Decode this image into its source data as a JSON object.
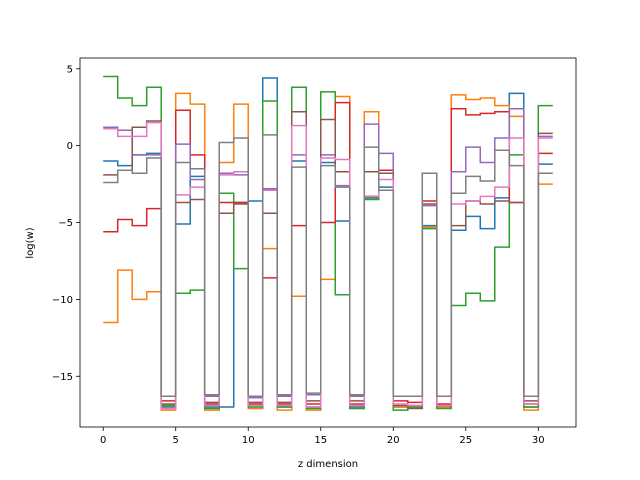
{
  "chart_data": {
    "type": "line",
    "drawstyle": "steps-post",
    "title": "",
    "xlabel": "z dimension",
    "ylabel": "log(w)",
    "xlim": [
      -1.6,
      32.6
    ],
    "ylim": [
      -18.3,
      5.7
    ],
    "xticks": [
      0,
      5,
      10,
      15,
      20,
      25,
      30
    ],
    "yticks": [
      -15,
      -10,
      -5,
      0,
      5
    ],
    "ytick_labels": [
      "−15",
      "−10",
      "−5",
      "0",
      "5"
    ],
    "grid": false,
    "legend": "none",
    "x": [
      0,
      1,
      2,
      3,
      4,
      5,
      6,
      7,
      8,
      9,
      10,
      11,
      12,
      13,
      14,
      15,
      16,
      17,
      18,
      19,
      20,
      21,
      22,
      23,
      24,
      25,
      26,
      27,
      28,
      29,
      30,
      31
    ],
    "series": [
      {
        "color": "#1f77b4",
        "values": [
          -1.0,
          -1.3,
          -0.6,
          -0.5,
          -17.0,
          -5.1,
          -2.0,
          -17.0,
          -17.0,
          -3.7,
          -3.6,
          4.4,
          -17.0,
          -1.0,
          -17.0,
          -1.1,
          -4.9,
          -17.0,
          -3.4,
          -2.7,
          -17.0,
          -17.0,
          -5.2,
          -17.0,
          -5.5,
          -4.6,
          -5.4,
          -3.4,
          3.4,
          -17.0,
          -1.2,
          -1.2
        ]
      },
      {
        "color": "#ff7f0e",
        "values": [
          -11.5,
          -8.1,
          -10.0,
          -9.5,
          -17.2,
          3.4,
          2.7,
          -17.2,
          -1.1,
          2.7,
          -17.1,
          -6.7,
          -17.2,
          -9.8,
          -17.2,
          -8.7,
          3.2,
          -17.1,
          2.2,
          -1.8,
          -17.0,
          -16.9,
          -5.3,
          -17.0,
          3.3,
          3.0,
          3.1,
          2.6,
          1.9,
          -17.2,
          -2.5,
          -2.5
        ]
      },
      {
        "color": "#2ca02c",
        "values": [
          4.5,
          3.1,
          2.6,
          3.8,
          -16.9,
          -9.6,
          -9.4,
          -17.1,
          -3.1,
          -8.0,
          -17.0,
          2.9,
          -17.0,
          3.8,
          -17.1,
          3.5,
          -9.7,
          -17.1,
          -3.5,
          -2.9,
          -17.2,
          -17.0,
          -5.4,
          -17.1,
          -10.4,
          -9.6,
          -10.1,
          -6.6,
          -0.6,
          -17.0,
          2.6,
          2.6
        ]
      },
      {
        "color": "#d62728",
        "values": [
          -5.6,
          -4.8,
          -5.2,
          -4.1,
          -16.6,
          2.3,
          -0.6,
          -16.8,
          -3.7,
          -3.7,
          -16.8,
          -8.6,
          -16.8,
          -5.2,
          -16.8,
          -5.0,
          2.8,
          -16.8,
          -3.3,
          -1.6,
          -16.6,
          -16.7,
          -3.6,
          -16.8,
          2.4,
          2.0,
          2.1,
          2.2,
          -3.7,
          -16.8,
          -0.5,
          -0.5
        ]
      },
      {
        "color": "#9467bd",
        "values": [
          1.2,
          1.0,
          -0.6,
          -0.6,
          -16.3,
          0.1,
          -2.2,
          -16.3,
          -1.8,
          -1.9,
          -16.4,
          -2.8,
          -16.3,
          -0.6,
          -16.2,
          -0.6,
          -2.6,
          -16.3,
          1.4,
          -0.5,
          -16.3,
          -16.3,
          -3.9,
          -16.3,
          -1.7,
          -0.1,
          -1.1,
          0.5,
          2.4,
          -16.3,
          0.6,
          0.6
        ]
      },
      {
        "color": "#8c564b",
        "values": [
          -1.9,
          -1.6,
          1.2,
          1.6,
          -16.8,
          -3.7,
          -3.5,
          -16.7,
          -4.4,
          -3.8,
          -16.7,
          -4.4,
          -16.7,
          2.2,
          -16.6,
          1.7,
          -1.7,
          -16.6,
          -1.7,
          -1.8,
          -16.9,
          -17.1,
          -3.8,
          -16.9,
          -5.2,
          -3.6,
          -3.8,
          -3.6,
          -3.7,
          -16.6,
          0.8,
          0.8
        ]
      },
      {
        "color": "#e377c2",
        "values": [
          1.1,
          0.6,
          0.6,
          1.5,
          -17.1,
          -3.2,
          -2.7,
          -16.9,
          -1.9,
          -1.7,
          -16.9,
          -2.9,
          -16.9,
          1.3,
          -17.0,
          -0.8,
          -0.9,
          -16.9,
          -3.3,
          -2.2,
          -16.8,
          -16.9,
          -1.8,
          -16.9,
          -3.8,
          -3.6,
          -3.3,
          -2.7,
          0.5,
          -16.8,
          0.5,
          0.5
        ]
      },
      {
        "color": "#7f7f7f",
        "values": [
          -2.4,
          -1.6,
          -1.8,
          -0.8,
          -16.3,
          -1.1,
          -1.5,
          -16.2,
          0.2,
          0.5,
          -16.3,
          0.7,
          -16.2,
          -1.4,
          -16.1,
          -1.3,
          -2.7,
          -16.2,
          -0.1,
          -2.9,
          -16.3,
          -16.3,
          -1.8,
          -16.3,
          -3.1,
          -2.0,
          -2.3,
          -0.3,
          -1.3,
          -16.3,
          -1.8,
          -1.8
        ]
      }
    ]
  }
}
